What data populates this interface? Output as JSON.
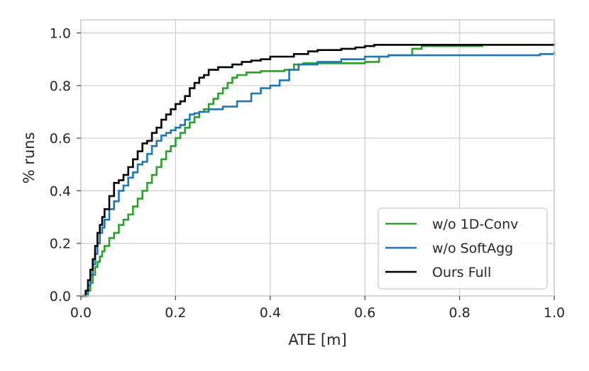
{
  "chart_data": {
    "type": "line",
    "title": "",
    "xlabel": "ATE [m]",
    "ylabel": "% runs",
    "xlim": [
      0.0,
      1.0
    ],
    "ylim": [
      0.0,
      1.05
    ],
    "xticks": [
      0.0,
      0.2,
      0.4,
      0.6,
      0.8,
      1.0
    ],
    "yticks": [
      0.0,
      0.2,
      0.4,
      0.6,
      0.8,
      1.0
    ],
    "xtick_labels": [
      "0.0",
      "0.2",
      "0.4",
      "0.6",
      "0.8",
      "1.0"
    ],
    "ytick_labels": [
      "0.0",
      "0.2",
      "0.4",
      "0.6",
      "0.8",
      "1.0"
    ],
    "grid": true,
    "legend_position": "lower-right",
    "series": [
      {
        "name": "w/o 1D-Conv",
        "color": "#2ca02c",
        "step": true,
        "x": [
          0.0,
          0.015,
          0.02,
          0.025,
          0.03,
          0.035,
          0.04,
          0.045,
          0.05,
          0.06,
          0.07,
          0.08,
          0.09,
          0.1,
          0.11,
          0.12,
          0.13,
          0.14,
          0.15,
          0.16,
          0.17,
          0.18,
          0.19,
          0.2,
          0.21,
          0.22,
          0.23,
          0.24,
          0.25,
          0.26,
          0.27,
          0.28,
          0.29,
          0.3,
          0.31,
          0.32,
          0.33,
          0.35,
          0.38,
          0.4,
          0.43,
          0.45,
          0.47,
          0.5,
          0.55,
          0.6,
          0.63,
          0.65,
          0.7,
          0.72,
          0.85
        ],
        "y": [
          0.0,
          0.02,
          0.05,
          0.08,
          0.11,
          0.13,
          0.15,
          0.17,
          0.19,
          0.22,
          0.24,
          0.27,
          0.29,
          0.31,
          0.34,
          0.37,
          0.4,
          0.43,
          0.46,
          0.49,
          0.52,
          0.55,
          0.57,
          0.6,
          0.62,
          0.64,
          0.66,
          0.68,
          0.7,
          0.71,
          0.73,
          0.75,
          0.77,
          0.79,
          0.81,
          0.83,
          0.84,
          0.85,
          0.855,
          0.855,
          0.86,
          0.88,
          0.885,
          0.885,
          0.885,
          0.89,
          0.91,
          0.915,
          0.94,
          0.95,
          0.95
        ]
      },
      {
        "name": "w/o SoftAgg",
        "color": "#1f77b4",
        "step": true,
        "x": [
          0.0,
          0.01,
          0.015,
          0.02,
          0.025,
          0.03,
          0.035,
          0.04,
          0.045,
          0.05,
          0.06,
          0.07,
          0.08,
          0.09,
          0.1,
          0.11,
          0.12,
          0.13,
          0.14,
          0.15,
          0.16,
          0.17,
          0.18,
          0.19,
          0.2,
          0.21,
          0.22,
          0.23,
          0.24,
          0.25,
          0.27,
          0.3,
          0.33,
          0.36,
          0.38,
          0.4,
          0.42,
          0.44,
          0.46,
          0.5,
          0.55,
          0.6,
          0.65,
          0.7,
          0.8,
          0.9,
          0.97,
          1.0
        ],
        "y": [
          0.0,
          0.01,
          0.04,
          0.08,
          0.12,
          0.16,
          0.2,
          0.24,
          0.26,
          0.29,
          0.33,
          0.36,
          0.4,
          0.42,
          0.45,
          0.47,
          0.5,
          0.51,
          0.54,
          0.57,
          0.59,
          0.61,
          0.62,
          0.63,
          0.64,
          0.65,
          0.67,
          0.69,
          0.695,
          0.7,
          0.71,
          0.72,
          0.74,
          0.77,
          0.79,
          0.8,
          0.82,
          0.86,
          0.88,
          0.89,
          0.9,
          0.91,
          0.915,
          0.915,
          0.915,
          0.915,
          0.92,
          0.93
        ]
      },
      {
        "name": "Ours Full",
        "color": "#000000",
        "step": true,
        "x": [
          0.0,
          0.01,
          0.015,
          0.02,
          0.025,
          0.03,
          0.035,
          0.04,
          0.045,
          0.05,
          0.06,
          0.07,
          0.08,
          0.09,
          0.1,
          0.11,
          0.12,
          0.13,
          0.14,
          0.15,
          0.16,
          0.17,
          0.18,
          0.19,
          0.2,
          0.21,
          0.22,
          0.23,
          0.24,
          0.25,
          0.26,
          0.27,
          0.29,
          0.3,
          0.32,
          0.34,
          0.36,
          0.38,
          0.4,
          0.42,
          0.45,
          0.48,
          0.5,
          0.55,
          0.58,
          0.6,
          0.62,
          1.0
        ],
        "y": [
          0.0,
          0.02,
          0.06,
          0.1,
          0.14,
          0.19,
          0.24,
          0.27,
          0.3,
          0.33,
          0.38,
          0.43,
          0.44,
          0.46,
          0.49,
          0.52,
          0.55,
          0.58,
          0.59,
          0.62,
          0.64,
          0.67,
          0.69,
          0.71,
          0.73,
          0.74,
          0.76,
          0.79,
          0.81,
          0.83,
          0.84,
          0.86,
          0.87,
          0.87,
          0.88,
          0.89,
          0.895,
          0.9,
          0.91,
          0.91,
          0.92,
          0.93,
          0.935,
          0.94,
          0.945,
          0.95,
          0.955,
          0.96
        ]
      }
    ]
  }
}
